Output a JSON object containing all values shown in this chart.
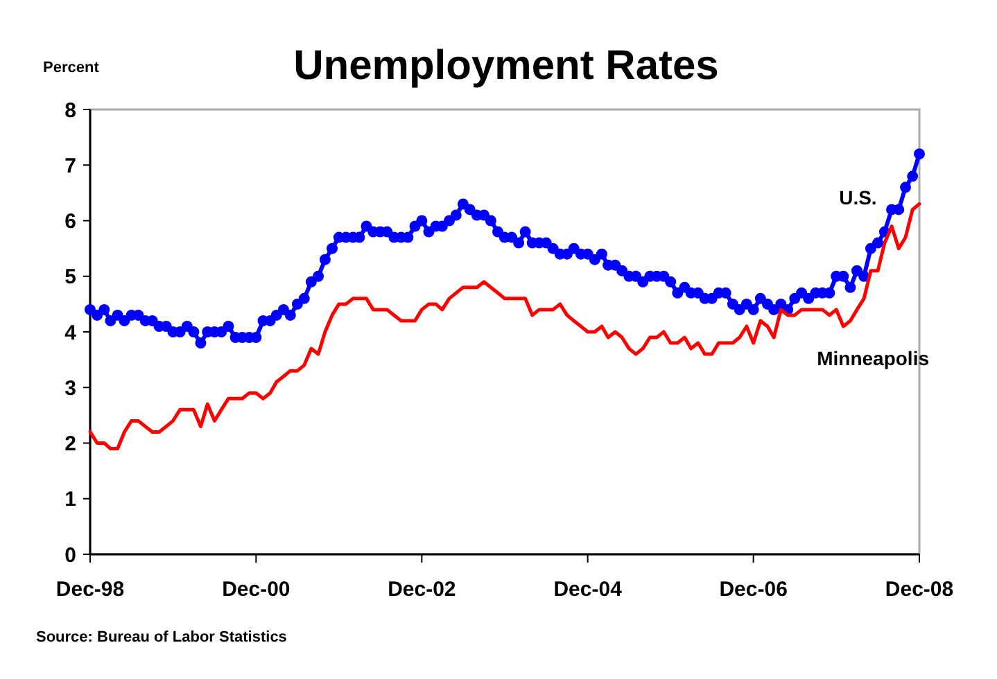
{
  "chart_data": {
    "type": "line",
    "title": "Unemployment Rates",
    "ylabel": "Percent",
    "annotations": [
      "Source: Bureau of Labor Statistics"
    ],
    "x": [
      "1998-12",
      "1999-01",
      "1999-02",
      "1999-03",
      "1999-04",
      "1999-05",
      "1999-06",
      "1999-07",
      "1999-08",
      "1999-09",
      "1999-10",
      "1999-11",
      "1999-12",
      "2000-01",
      "2000-02",
      "2000-03",
      "2000-04",
      "2000-05",
      "2000-06",
      "2000-07",
      "2000-08",
      "2000-09",
      "2000-10",
      "2000-11",
      "2000-12",
      "2001-01",
      "2001-02",
      "2001-03",
      "2001-04",
      "2001-05",
      "2001-06",
      "2001-07",
      "2001-08",
      "2001-09",
      "2001-10",
      "2001-11",
      "2001-12",
      "2002-01",
      "2002-02",
      "2002-03",
      "2002-04",
      "2002-05",
      "2002-06",
      "2002-07",
      "2002-08",
      "2002-09",
      "2002-10",
      "2002-11",
      "2002-12",
      "2003-01",
      "2003-02",
      "2003-03",
      "2003-04",
      "2003-05",
      "2003-06",
      "2003-07",
      "2003-08",
      "2003-09",
      "2003-10",
      "2003-11",
      "2003-12",
      "2004-01",
      "2004-02",
      "2004-03",
      "2004-04",
      "2004-05",
      "2004-06",
      "2004-07",
      "2004-08",
      "2004-09",
      "2004-10",
      "2004-11",
      "2004-12",
      "2005-01",
      "2005-02",
      "2005-03",
      "2005-04",
      "2005-05",
      "2005-06",
      "2005-07",
      "2005-08",
      "2005-09",
      "2005-10",
      "2005-11",
      "2005-12",
      "2006-01",
      "2006-02",
      "2006-03",
      "2006-04",
      "2006-05",
      "2006-06",
      "2006-07",
      "2006-08",
      "2006-09",
      "2006-10",
      "2006-11",
      "2006-12",
      "2007-01",
      "2007-02",
      "2007-03",
      "2007-04",
      "2007-05",
      "2007-06",
      "2007-07",
      "2007-08",
      "2007-09",
      "2007-10",
      "2007-11",
      "2007-12",
      "2008-01",
      "2008-02",
      "2008-03",
      "2008-04",
      "2008-05",
      "2008-06",
      "2008-07",
      "2008-08",
      "2008-09",
      "2008-10",
      "2008-11",
      "2008-12"
    ],
    "series": [
      {
        "name": "U.S.",
        "color": "#0000ff",
        "marker": "circle",
        "values": [
          4.4,
          4.3,
          4.4,
          4.2,
          4.3,
          4.2,
          4.3,
          4.3,
          4.2,
          4.2,
          4.1,
          4.1,
          4.0,
          4.0,
          4.1,
          4.0,
          3.8,
          4.0,
          4.0,
          4.0,
          4.1,
          3.9,
          3.9,
          3.9,
          3.9,
          4.2,
          4.2,
          4.3,
          4.4,
          4.3,
          4.5,
          4.6,
          4.9,
          5.0,
          5.3,
          5.5,
          5.7,
          5.7,
          5.7,
          5.7,
          5.9,
          5.8,
          5.8,
          5.8,
          5.7,
          5.7,
          5.7,
          5.9,
          6.0,
          5.8,
          5.9,
          5.9,
          6.0,
          6.1,
          6.3,
          6.2,
          6.1,
          6.1,
          6.0,
          5.8,
          5.7,
          5.7,
          5.6,
          5.8,
          5.6,
          5.6,
          5.6,
          5.5,
          5.4,
          5.4,
          5.5,
          5.4,
          5.4,
          5.3,
          5.4,
          5.2,
          5.2,
          5.1,
          5.0,
          5.0,
          4.9,
          5.0,
          5.0,
          5.0,
          4.9,
          4.7,
          4.8,
          4.7,
          4.7,
          4.6,
          4.6,
          4.7,
          4.7,
          4.5,
          4.4,
          4.5,
          4.4,
          4.6,
          4.5,
          4.4,
          4.5,
          4.4,
          4.6,
          4.7,
          4.6,
          4.7,
          4.7,
          4.7,
          5.0,
          5.0,
          4.8,
          5.1,
          5.0,
          5.5,
          5.6,
          5.8,
          6.2,
          6.2,
          6.6,
          6.8,
          7.2
        ]
      },
      {
        "name": "Minneapolis",
        "color": "#ff0000",
        "marker": "none",
        "values": [
          2.2,
          2.0,
          2.0,
          1.9,
          1.9,
          2.2,
          2.4,
          2.4,
          2.3,
          2.2,
          2.2,
          2.3,
          2.4,
          2.6,
          2.6,
          2.6,
          2.3,
          2.7,
          2.4,
          2.6,
          2.8,
          2.8,
          2.8,
          2.9,
          2.9,
          2.8,
          2.9,
          3.1,
          3.2,
          3.3,
          3.3,
          3.4,
          3.7,
          3.6,
          4.0,
          4.3,
          4.5,
          4.5,
          4.6,
          4.6,
          4.6,
          4.4,
          4.4,
          4.4,
          4.3,
          4.2,
          4.2,
          4.2,
          4.4,
          4.5,
          4.5,
          4.4,
          4.6,
          4.7,
          4.8,
          4.8,
          4.8,
          4.9,
          4.8,
          4.7,
          4.6,
          4.6,
          4.6,
          4.6,
          4.3,
          4.4,
          4.4,
          4.4,
          4.5,
          4.3,
          4.2,
          4.1,
          4.0,
          4.0,
          4.1,
          3.9,
          4.0,
          3.9,
          3.7,
          3.6,
          3.7,
          3.9,
          3.9,
          4.0,
          3.8,
          3.8,
          3.9,
          3.7,
          3.8,
          3.6,
          3.6,
          3.8,
          3.8,
          3.8,
          3.9,
          4.1,
          3.8,
          4.2,
          4.1,
          3.9,
          4.4,
          4.3,
          4.3,
          4.4,
          4.4,
          4.4,
          4.4,
          4.3,
          4.4,
          4.1,
          4.2,
          4.4,
          4.6,
          5.1,
          5.1,
          5.6,
          5.9,
          5.5,
          5.7,
          6.2,
          6.3
        ]
      }
    ],
    "xlim": [
      "1998-12",
      "2008-12"
    ],
    "xticks": [
      {
        "value": "1998-12",
        "label": "Dec-98"
      },
      {
        "value": "2000-12",
        "label": "Dec-00"
      },
      {
        "value": "2002-12",
        "label": "Dec-02"
      },
      {
        "value": "2004-12",
        "label": "Dec-04"
      },
      {
        "value": "2006-12",
        "label": "Dec-06"
      },
      {
        "value": "2008-12",
        "label": "Dec-08"
      }
    ],
    "ylim": [
      0,
      8
    ],
    "yticks": [
      0,
      1,
      2,
      3,
      4,
      5,
      6,
      7,
      8
    ],
    "grid": false,
    "legend": false,
    "line_style": "solid"
  }
}
